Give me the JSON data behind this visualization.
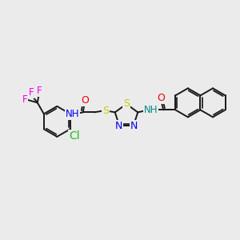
{
  "background_color": "#ebebeb",
  "bond_color": "#1a1a1a",
  "bond_width": 1.4,
  "atom_colors": {
    "C": "#1a1a1a",
    "N": "#0000ee",
    "O": "#ee0000",
    "S": "#cccc00",
    "F": "#ee00ee",
    "Cl": "#22bb22",
    "NH": "#008888",
    "NH_right": "#008888"
  },
  "font_size": 8.5
}
